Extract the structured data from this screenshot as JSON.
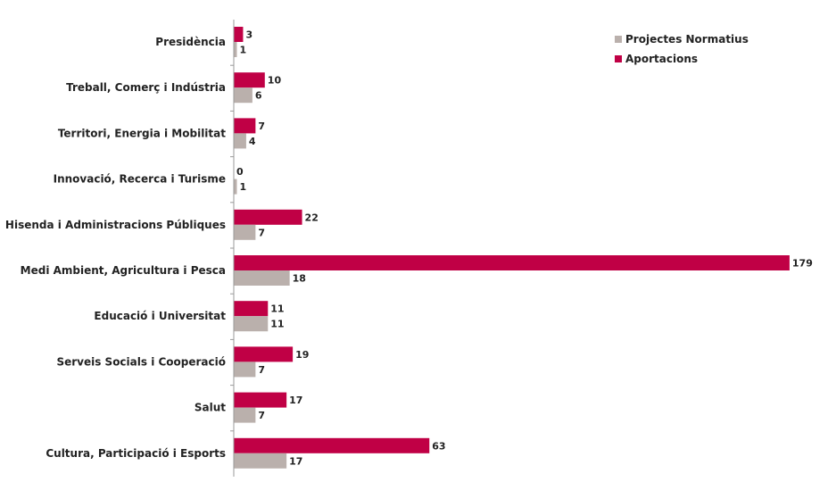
{
  "chart_data": {
    "type": "bar",
    "orientation": "horizontal",
    "categories": [
      "Presidència",
      "Treball, Comerç i Indústria",
      "Territori, Energia i Mobilitat",
      "Innovació, Recerca i Turisme",
      "Hisenda i Administracions Públiques",
      "Medi Ambient, Agricultura i Pesca",
      "Educació i Universitat",
      "Serveis Socials i Cooperació",
      "Salut",
      "Cultura, Participació i Esports"
    ],
    "series": [
      {
        "name": "Aportacions",
        "color": "#c00045",
        "values": [
          3,
          10,
          7,
          0,
          22,
          179,
          11,
          19,
          17,
          63
        ]
      },
      {
        "name": "Projectes Normatius",
        "color": "#bab0ac",
        "values": [
          1,
          6,
          4,
          1,
          7,
          18,
          11,
          7,
          7,
          17
        ]
      }
    ],
    "data_labels": true,
    "legend_position": "top-right",
    "grid": false
  },
  "legend": {
    "items": [
      {
        "label": "Projectes Normatius",
        "color": "#bab0ac"
      },
      {
        "label": "Aportacions",
        "color": "#c00045"
      }
    ]
  }
}
